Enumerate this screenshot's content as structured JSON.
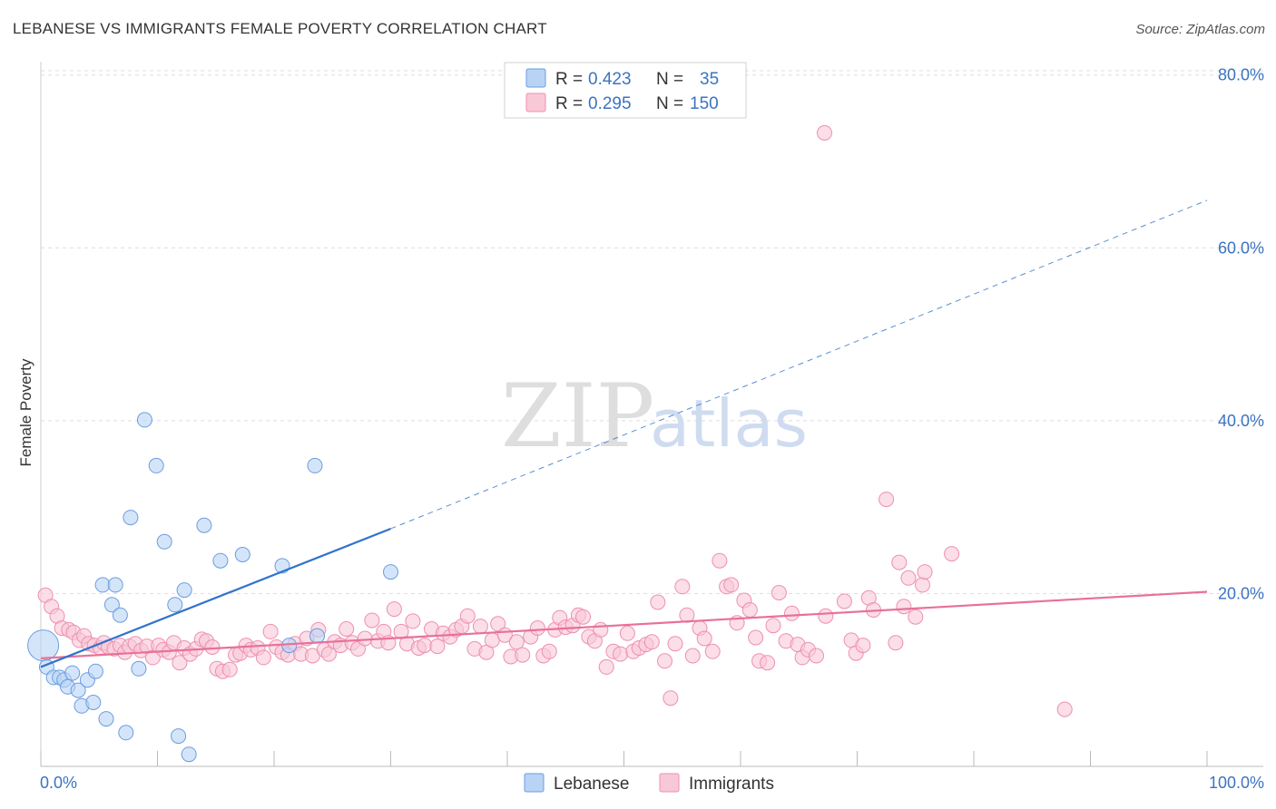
{
  "title": "LEBANESE VS IMMIGRANTS FEMALE POVERTY CORRELATION CHART",
  "source": "Source: ZipAtlas.com",
  "watermark": {
    "zip": "ZIP",
    "atlas": "atlas"
  },
  "colors": {
    "lebanese_fill": "#b9d3f5",
    "lebanese_stroke": "#6a9de0",
    "lebanese_line": "#2f73cc",
    "immigrants_fill": "#f9c8d7",
    "immigrants_stroke": "#ee8fb0",
    "immigrants_line": "#e8709a",
    "axis_text": "#3b73c2",
    "grid": "#dddddd"
  },
  "legend": {
    "rows": [
      {
        "r_label": "R = ",
        "r_value": "0.423",
        "n_label": "N = ",
        "n_value": "35"
      },
      {
        "r_label": "R = ",
        "r_value": "0.295",
        "n_label": "N = ",
        "n_value": "150"
      }
    ]
  },
  "bottom_legend": [
    "Lebanese",
    "Immigrants"
  ],
  "chart_data": {
    "type": "scatter",
    "title": "LEBANESE VS IMMIGRANTS FEMALE POVERTY CORRELATION CHART",
    "xlabel": "",
    "ylabel": "Female Poverty",
    "xlim": [
      0,
      100
    ],
    "ylim": [
      0,
      85
    ],
    "x_tick_labels": [
      "0.0%",
      "100.0%"
    ],
    "y_ticks": [
      20,
      40,
      60,
      80
    ],
    "y_tick_labels": [
      "20.0%",
      "40.0%",
      "60.0%",
      "80.0%"
    ],
    "grid": "horizontal dashed",
    "legend_position": "top-center",
    "series": [
      {
        "name": "Lebanese",
        "r": 0.423,
        "n": 35,
        "points": [
          [
            0.2,
            14.0
          ],
          [
            0.5,
            11.5
          ],
          [
            1.1,
            10.3
          ],
          [
            1.6,
            10.3
          ],
          [
            2.0,
            10.0
          ],
          [
            2.3,
            9.2
          ],
          [
            2.7,
            10.8
          ],
          [
            3.2,
            8.8
          ],
          [
            3.5,
            7.0
          ],
          [
            4.0,
            10.0
          ],
          [
            4.5,
            7.4
          ],
          [
            4.7,
            11.0
          ],
          [
            5.6,
            5.5
          ],
          [
            5.3,
            21.0
          ],
          [
            6.1,
            18.7
          ],
          [
            6.4,
            21.0
          ],
          [
            6.8,
            17.5
          ],
          [
            7.3,
            3.9
          ],
          [
            7.7,
            28.8
          ],
          [
            8.4,
            11.3
          ],
          [
            8.9,
            40.1
          ],
          [
            9.9,
            34.8
          ],
          [
            10.6,
            26.0
          ],
          [
            11.5,
            18.7
          ],
          [
            11.8,
            3.5
          ],
          [
            12.3,
            20.4
          ],
          [
            12.7,
            1.4
          ],
          [
            14.0,
            27.9
          ],
          [
            15.4,
            23.8
          ],
          [
            17.3,
            24.5
          ],
          [
            20.7,
            23.2
          ],
          [
            21.3,
            14.0
          ],
          [
            23.5,
            34.8
          ],
          [
            23.7,
            15.1
          ],
          [
            30.0,
            22.5
          ]
        ],
        "trend": {
          "x": [
            0,
            30
          ],
          "y": [
            11.5,
            27.5
          ],
          "extrapolated": {
            "x": [
              30,
              100
            ],
            "y": [
              27.5,
              65.5
            ]
          }
        }
      },
      {
        "name": "Immigrants",
        "r": 0.295,
        "n": 150,
        "points": [
          [
            0.4,
            19.8
          ],
          [
            0.9,
            18.5
          ],
          [
            1.4,
            17.4
          ],
          [
            1.8,
            16.0
          ],
          [
            2.4,
            15.8
          ],
          [
            2.8,
            15.5
          ],
          [
            3.3,
            14.6
          ],
          [
            3.7,
            15.1
          ],
          [
            4.1,
            14.2
          ],
          [
            4.6,
            14.0
          ],
          [
            5.1,
            13.7
          ],
          [
            5.4,
            14.3
          ],
          [
            5.8,
            13.8
          ],
          [
            6.3,
            13.6
          ],
          [
            6.8,
            14.0
          ],
          [
            7.2,
            13.2
          ],
          [
            7.6,
            13.9
          ],
          [
            8.1,
            14.2
          ],
          [
            8.6,
            13.4
          ],
          [
            9.1,
            13.9
          ],
          [
            9.6,
            12.6
          ],
          [
            10.1,
            14.0
          ],
          [
            10.5,
            13.5
          ],
          [
            11.0,
            13.2
          ],
          [
            11.4,
            14.3
          ],
          [
            11.9,
            12.0
          ],
          [
            12.3,
            13.7
          ],
          [
            12.8,
            13.0
          ],
          [
            13.3,
            13.6
          ],
          [
            13.8,
            14.7
          ],
          [
            14.2,
            14.5
          ],
          [
            14.7,
            13.8
          ],
          [
            15.1,
            11.3
          ],
          [
            15.6,
            11.0
          ],
          [
            16.2,
            11.2
          ],
          [
            16.7,
            12.9
          ],
          [
            17.1,
            13.1
          ],
          [
            17.6,
            14.0
          ],
          [
            18.0,
            13.5
          ],
          [
            18.6,
            13.7
          ],
          [
            19.1,
            12.6
          ],
          [
            19.7,
            15.6
          ],
          [
            20.2,
            13.8
          ],
          [
            20.7,
            13.2
          ],
          [
            21.2,
            12.9
          ],
          [
            21.8,
            14.2
          ],
          [
            22.3,
            13.0
          ],
          [
            22.8,
            14.8
          ],
          [
            23.3,
            12.8
          ],
          [
            23.8,
            15.8
          ],
          [
            24.3,
            13.5
          ],
          [
            24.7,
            13.0
          ],
          [
            25.2,
            14.4
          ],
          [
            25.7,
            14.0
          ],
          [
            26.2,
            15.9
          ],
          [
            26.7,
            14.3
          ],
          [
            27.2,
            13.6
          ],
          [
            27.8,
            14.8
          ],
          [
            28.4,
            16.9
          ],
          [
            28.9,
            14.5
          ],
          [
            29.4,
            15.6
          ],
          [
            29.8,
            14.3
          ],
          [
            30.3,
            18.2
          ],
          [
            30.9,
            15.6
          ],
          [
            31.4,
            14.2
          ],
          [
            31.9,
            16.8
          ],
          [
            32.4,
            13.7
          ],
          [
            32.9,
            14.0
          ],
          [
            33.5,
            15.9
          ],
          [
            34.0,
            13.9
          ],
          [
            34.5,
            15.4
          ],
          [
            35.1,
            15.0
          ],
          [
            35.6,
            15.8
          ],
          [
            36.1,
            16.2
          ],
          [
            36.6,
            17.4
          ],
          [
            37.2,
            13.6
          ],
          [
            37.7,
            16.2
          ],
          [
            38.2,
            13.2
          ],
          [
            38.7,
            14.6
          ],
          [
            39.2,
            16.5
          ],
          [
            39.8,
            15.2
          ],
          [
            40.3,
            12.7
          ],
          [
            40.8,
            14.4
          ],
          [
            41.3,
            12.9
          ],
          [
            42.0,
            15.0
          ],
          [
            42.6,
            16.0
          ],
          [
            43.1,
            12.8
          ],
          [
            43.6,
            13.3
          ],
          [
            44.1,
            15.8
          ],
          [
            44.5,
            17.2
          ],
          [
            45.0,
            16.1
          ],
          [
            45.6,
            16.3
          ],
          [
            46.1,
            17.5
          ],
          [
            46.5,
            17.3
          ],
          [
            47.0,
            15.0
          ],
          [
            47.5,
            14.5
          ],
          [
            48.0,
            15.8
          ],
          [
            48.5,
            11.5
          ],
          [
            49.1,
            13.3
          ],
          [
            49.7,
            13.0
          ],
          [
            50.3,
            15.4
          ],
          [
            50.8,
            13.3
          ],
          [
            51.3,
            13.7
          ],
          [
            51.9,
            14.1
          ],
          [
            52.4,
            14.4
          ],
          [
            52.9,
            19.0
          ],
          [
            53.5,
            12.2
          ],
          [
            54.0,
            7.9
          ],
          [
            54.4,
            14.2
          ],
          [
            55.0,
            20.8
          ],
          [
            55.4,
            17.5
          ],
          [
            55.9,
            12.8
          ],
          [
            56.5,
            16.0
          ],
          [
            56.9,
            14.8
          ],
          [
            57.6,
            13.3
          ],
          [
            58.2,
            23.8
          ],
          [
            58.8,
            20.8
          ],
          [
            59.2,
            21.0
          ],
          [
            59.7,
            16.6
          ],
          [
            60.3,
            19.2
          ],
          [
            60.8,
            18.1
          ],
          [
            61.3,
            14.9
          ],
          [
            61.6,
            12.2
          ],
          [
            62.3,
            12.0
          ],
          [
            62.8,
            16.3
          ],
          [
            63.3,
            20.1
          ],
          [
            63.9,
            14.5
          ],
          [
            64.4,
            17.7
          ],
          [
            64.9,
            14.1
          ],
          [
            65.3,
            12.6
          ],
          [
            65.8,
            13.5
          ],
          [
            66.5,
            12.8
          ],
          [
            67.3,
            17.4
          ],
          [
            67.2,
            73.3
          ],
          [
            68.9,
            19.1
          ],
          [
            69.5,
            14.6
          ],
          [
            69.9,
            13.1
          ],
          [
            70.5,
            14.0
          ],
          [
            71.0,
            19.5
          ],
          [
            71.4,
            18.1
          ],
          [
            72.5,
            30.9
          ],
          [
            73.3,
            14.3
          ],
          [
            73.6,
            23.6
          ],
          [
            74.0,
            18.5
          ],
          [
            74.4,
            21.8
          ],
          [
            75.0,
            17.3
          ],
          [
            75.6,
            21.0
          ],
          [
            75.8,
            22.5
          ],
          [
            78.1,
            24.6
          ],
          [
            87.8,
            6.6
          ]
        ],
        "trend": {
          "x": [
            0,
            100
          ],
          "y": [
            12.5,
            20.2
          ]
        }
      }
    ]
  }
}
